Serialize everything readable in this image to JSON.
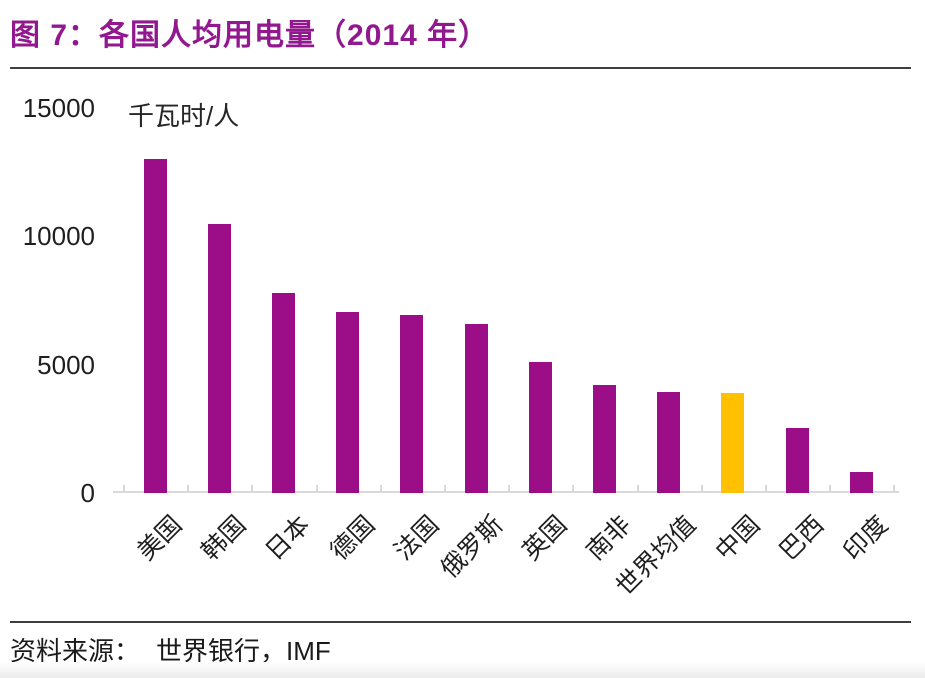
{
  "title": "图 7：各国人均用电量（2014 年）",
  "source": {
    "label": "资料来源：",
    "value": "世界银行，IMF"
  },
  "colors": {
    "title": "#92188F",
    "bar": "#9B0E87",
    "highlight": "#FFC000",
    "axis": "#D9D9D9",
    "rule": "#3F3F3F",
    "text": "#1F1F1F"
  },
  "chart_data": {
    "type": "bar",
    "figure_label": "图 7",
    "title": "各国人均用电量（2014 年）",
    "unit": "千瓦时/人",
    "categories": [
      "美国",
      "韩国",
      "日本",
      "德国",
      "法国",
      "俄罗斯",
      "英国",
      "南非",
      "世界均值",
      "中国",
      "巴西",
      "印度"
    ],
    "values": [
      13000,
      10500,
      7800,
      7050,
      6950,
      6600,
      5100,
      4200,
      3950,
      3900,
      2550,
      800
    ],
    "ylim": [
      0,
      15000
    ],
    "yticks": [
      0,
      5000,
      10000,
      15000
    ],
    "highlight_index": 9,
    "grid": false,
    "legend": "none",
    "source": "资料来源： 世界银行，IMF"
  }
}
